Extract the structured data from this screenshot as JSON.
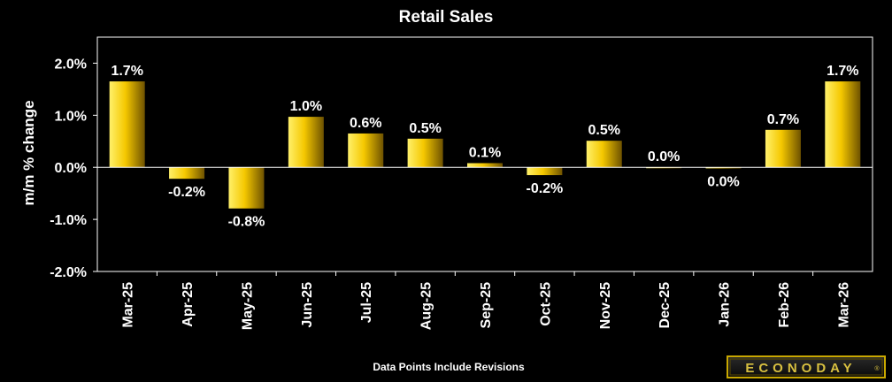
{
  "chart_data": {
    "type": "bar",
    "title": "Retail Sales",
    "ylabel": "m/m % change",
    "xlabel": "",
    "categories": [
      "Mar-25",
      "Apr-25",
      "May-25",
      "Jun-25",
      "Jul-25",
      "Aug-25",
      "Sep-25",
      "Oct-25",
      "Nov-25",
      "Dec-25",
      "Jan-26",
      "Feb-26",
      "Mar-26"
    ],
    "values": [
      1.65,
      -0.22,
      -0.79,
      0.97,
      0.65,
      0.55,
      0.08,
      -0.15,
      0.51,
      0.0,
      -0.02,
      0.72,
      1.65
    ],
    "data_labels": [
      "1.7%",
      "-0.2%",
      "-0.8%",
      "1.0%",
      "0.6%",
      "0.5%",
      "0.1%",
      "-0.2%",
      "0.5%",
      "0.0%",
      "0.0%",
      "0.7%",
      "1.7%"
    ],
    "yticks": [
      "2.0%",
      "1.0%",
      "0.0%",
      "-1.0%",
      "-2.0%"
    ],
    "ytick_values": [
      2,
      1,
      0,
      -1,
      -2
    ],
    "ylim": [
      -2,
      2.5
    ],
    "grid": false,
    "bar_color": "#f5c800",
    "footnote": "Data Points Include Revisions"
  },
  "branding": {
    "logo_text": "ECONODAY",
    "registered_mark": "®",
    "logo_color": "#d8c040"
  }
}
